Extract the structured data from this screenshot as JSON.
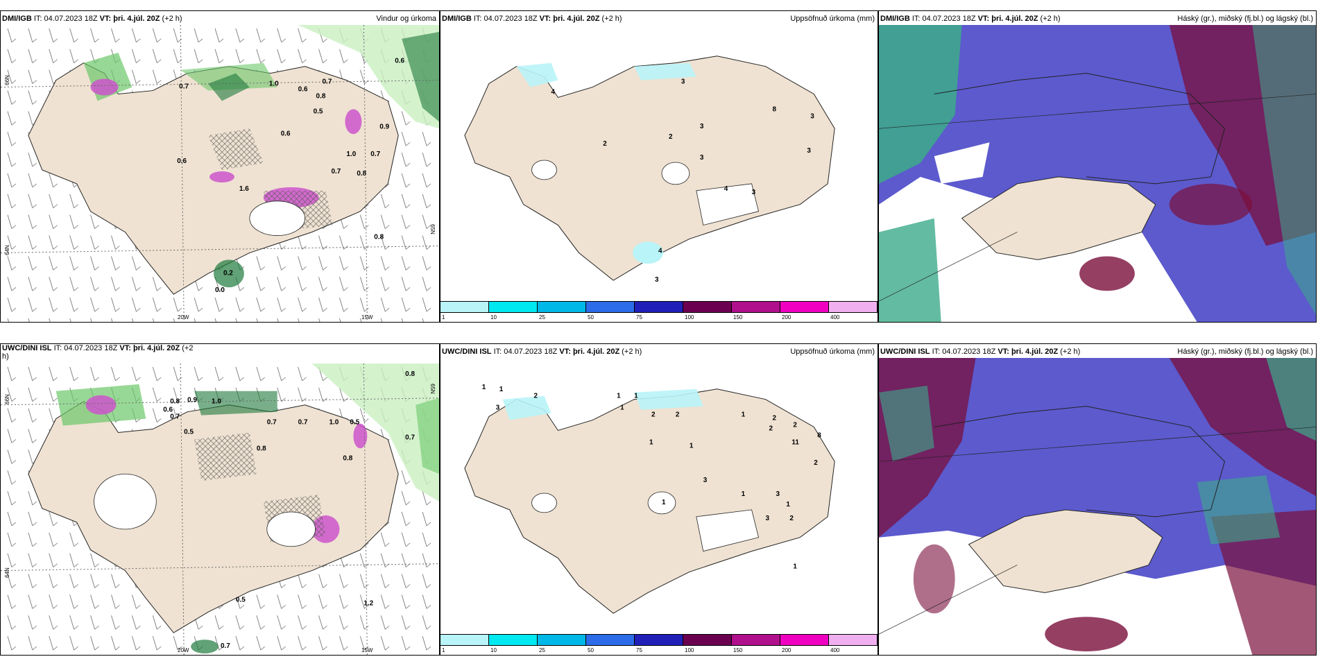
{
  "colors": {
    "land": "#efe2d2",
    "land_snow": "#ffffff",
    "wind_green_light": "#c9f0c0",
    "wind_green_mid": "#6cc86a",
    "wind_green_dark": "#1e7a3c",
    "precip_magenta": "#cc55cc",
    "cloud_high": "#3cab8a",
    "cloud_mid": "#7a0f3c",
    "cloud_low": "#4a48c8",
    "precip_light_cyan": "#b8f4f8"
  },
  "panels": [
    {
      "left": "DMI/IGB",
      "it_label": "IT:",
      "it_value": "04.07.2023 18Z",
      "vt_label": "VT:",
      "vt_value": "þri. 4.júl. 20Z",
      "lead": "(+2 h)",
      "product": "Vindur og úrkoma"
    },
    {
      "left": "DMI/IGB",
      "it_label": "IT:",
      "it_value": "04.07.2023 18Z",
      "vt_label": "VT:",
      "vt_value": "þri. 4.júl. 20Z",
      "lead": "(+2 h)",
      "product": "Uppsöfnuð úrkoma (mm)"
    },
    {
      "left": "DMI/IGB",
      "it_label": "IT:",
      "it_value": "04.07.2023 18Z",
      "vt_label": "VT:",
      "vt_value": "þri. 4.júl. 20Z",
      "lead": "(+2 h)",
      "product": "Háský (gr.), miðský (fj.bl.) og lágský (bl.)"
    },
    {
      "left": "UWC/DINI ISL",
      "it_label": "IT:",
      "it_value": "04.07.2023 18Z",
      "vt_label": "VT:",
      "vt_value": "þri. 4.júl. 20Z",
      "lead": "(+2",
      "lead2": "h)",
      "product": ""
    },
    {
      "left": "UWC/DINI ISL",
      "it_label": "IT:",
      "it_value": "04.07.2023 18Z",
      "vt_label": "VT:",
      "vt_value": "þri. 4.júl. 20Z",
      "lead": "(+2 h)",
      "product": "Uppsöfnuð úrkoma (mm)"
    },
    {
      "left": "UWC/DINI ISL",
      "it_label": "IT:",
      "it_value": "04.07.2023 18Z",
      "vt_label": "VT:",
      "vt_value": "þri. 4.júl. 20Z",
      "lead": "(+2 h)",
      "product": "Háský (gr.), miðský (fj.bl.) og lágský (bl.)"
    }
  ],
  "axis_labels": {
    "lat_66": "66N",
    "lat_64": "64N",
    "lat_65": "65N",
    "lon_20": "20W",
    "lon_15": "15W"
  },
  "colorbar": {
    "ticks": [
      "1",
      "10",
      "25",
      "50",
      "75",
      "100",
      "150",
      "200",
      "400"
    ],
    "colors": [
      "#b8f4f8",
      "#00e8f0",
      "#00b8e8",
      "#2c6ce8",
      "#2020b8",
      "#6c0050",
      "#b0108c",
      "#f000c0",
      "#f0b0f0"
    ]
  },
  "values": {
    "p1": [
      "0.6",
      "0.7",
      "1.0",
      "0.6",
      "0.7",
      "0.8",
      "0.5",
      "0.9",
      "0.6",
      "1.0",
      "0.7",
      "0.7",
      "0.8",
      "1.6",
      "0.6",
      "0.8",
      "0.2",
      "0.0"
    ],
    "p2": [
      "4",
      "2",
      "2",
      "3",
      "3",
      "3",
      "8",
      "3",
      "3",
      "4",
      "3",
      "4",
      "3"
    ],
    "p4": [
      "0.8",
      "0.8",
      "0.9",
      "1.0",
      "0.6",
      "0.7",
      "0.7",
      "0.5",
      "0.7",
      "1.0",
      "0.5",
      "0.8",
      "0.7",
      "0.8",
      "0.5",
      "1.2",
      "0.7"
    ],
    "p5": [
      "1",
      "1",
      "2",
      "3",
      "1",
      "1",
      "1",
      "2",
      "2",
      "1",
      "1",
      "1",
      "2",
      "2",
      "2",
      "11",
      "8",
      "2",
      "3",
      "1",
      "3",
      "1",
      "2",
      "3",
      "1",
      "1"
    ]
  }
}
